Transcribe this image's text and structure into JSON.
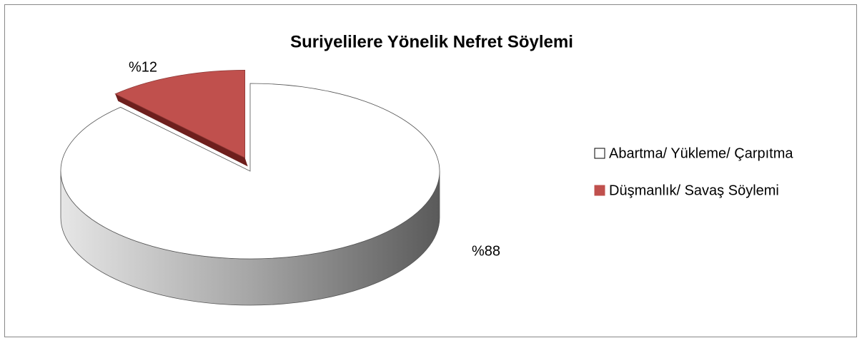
{
  "chart_data": {
    "type": "pie",
    "title": "Suriyelilere Yönelik Nefret Söylemi",
    "categories": [
      "Abartma/ Yükleme/ Çarpıtma",
      "Düşmanlık/ Savaş Söylemi"
    ],
    "values": [
      88,
      12
    ],
    "value_labels": [
      "%88",
      "%12"
    ],
    "colors": [
      "#ffffff",
      "#c0504d"
    ],
    "legend": "right"
  }
}
